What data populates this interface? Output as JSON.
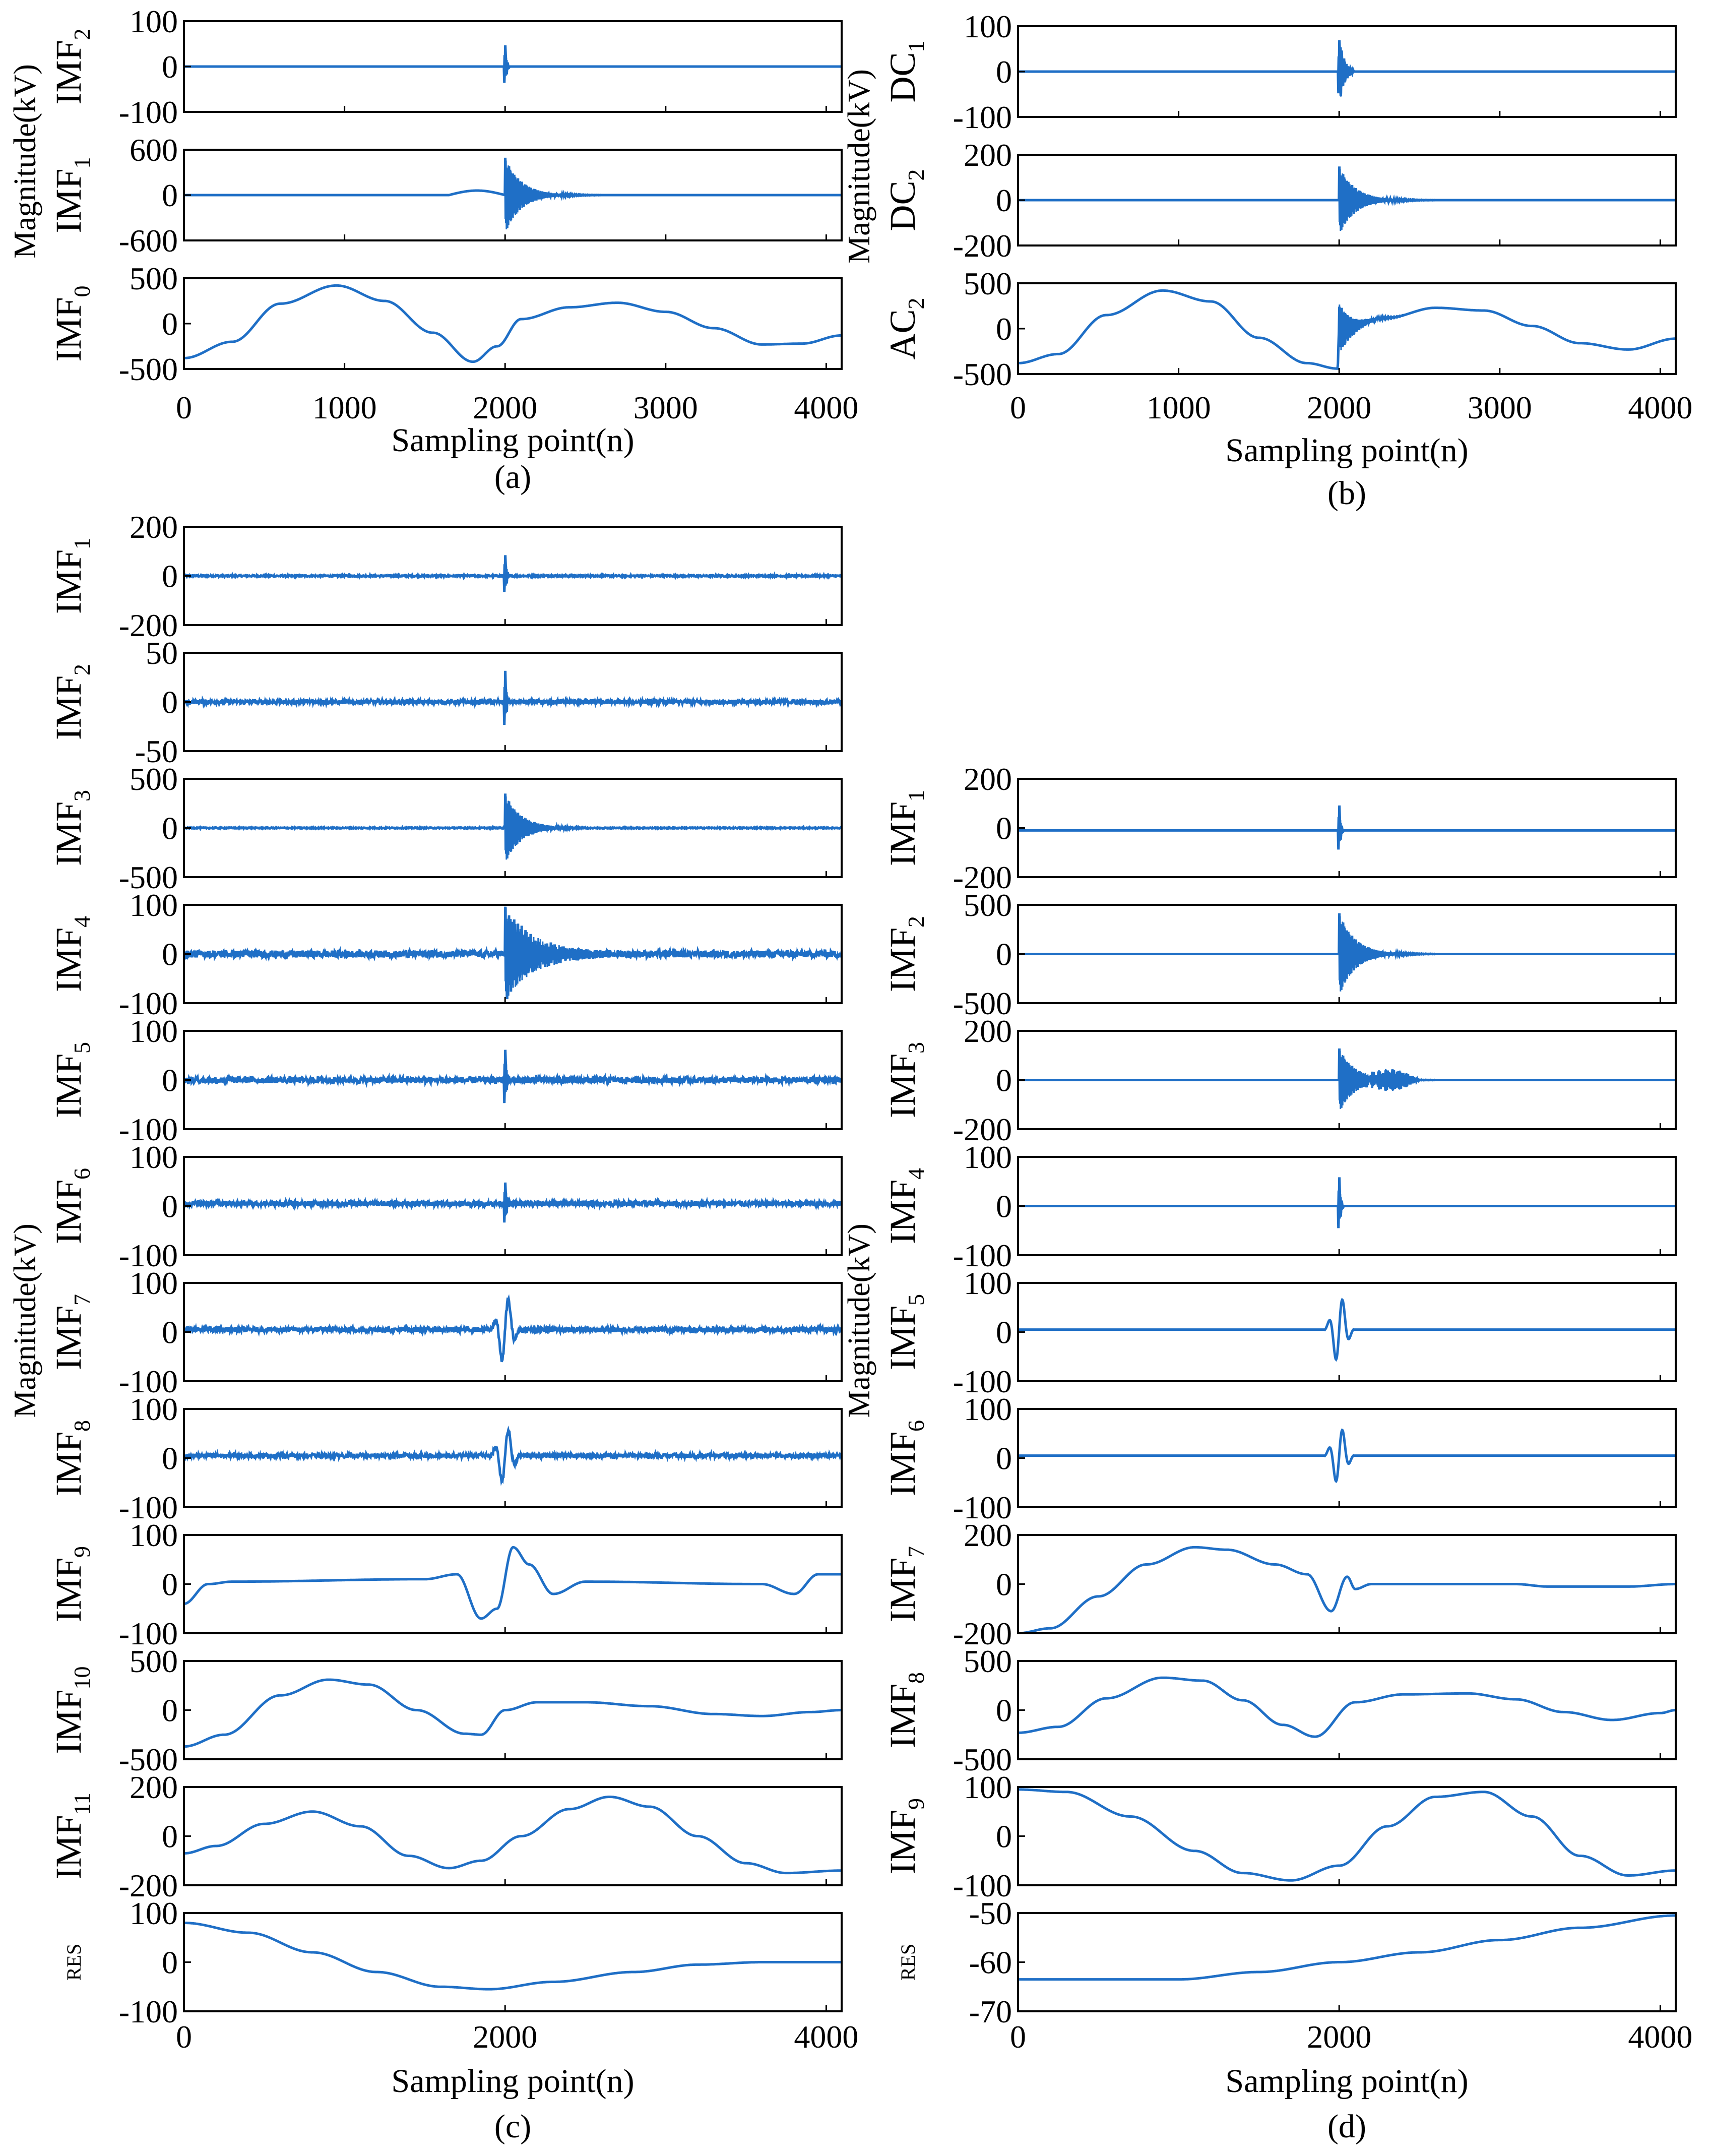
{
  "chart_data": [
    {
      "type": "line",
      "caption": "(a)",
      "group_ylabel": "Magnitude(kV)",
      "xlabel": "Sampling point(n)",
      "xlim": [
        0,
        4096
      ],
      "xticks": [
        "0",
        "1000",
        "2000",
        "3000",
        "4000"
      ],
      "line_color": "#1f6fc6",
      "panels": [
        {
          "label": "IMF",
          "sub": "2",
          "ylim": [
            -100,
            100
          ],
          "yticks": [
            "100",
            "0",
            "-100"
          ],
          "wave": "spike",
          "amp": 60
        },
        {
          "label": "IMF",
          "sub": "1",
          "ylim": [
            -600,
            600
          ],
          "yticks": [
            "600",
            "0",
            "-600"
          ],
          "wave": "burst",
          "amp": 500,
          "bump": 60
        },
        {
          "label": "IMF",
          "sub": "0",
          "ylim": [
            -500,
            500
          ],
          "yticks": [
            "500",
            "0",
            "-500"
          ],
          "wave": "fund",
          "points": [
            [
              0,
              -380
            ],
            [
              300,
              -200
            ],
            [
              600,
              220
            ],
            [
              950,
              420
            ],
            [
              1250,
              250
            ],
            [
              1550,
              -100
            ],
            [
              1800,
              -420
            ],
            [
              1950,
              -250
            ],
            [
              2100,
              50
            ],
            [
              2400,
              180
            ],
            [
              2700,
              230
            ],
            [
              3000,
              130
            ],
            [
              3300,
              -50
            ],
            [
              3600,
              -230
            ],
            [
              3850,
              -220
            ],
            [
              4096,
              -130
            ]
          ]
        }
      ]
    },
    {
      "type": "line",
      "caption": "(b)",
      "group_ylabel": "Magnitude(kV)",
      "xlabel": "Sampling point(n)",
      "xlim": [
        0,
        4096
      ],
      "xticks": [
        "0",
        "1000",
        "2000",
        "3000",
        "4000"
      ],
      "line_color": "#1f6fc6",
      "panels": [
        {
          "label": "DC",
          "sub": "1",
          "ylim": [
            -100,
            100
          ],
          "yticks": [
            "100",
            "0",
            "-100"
          ],
          "wave": "spike",
          "amp": 80,
          "ring": 90
        },
        {
          "label": "DC",
          "sub": "2",
          "ylim": [
            -200,
            200
          ],
          "yticks": [
            "200",
            "0",
            "-200"
          ],
          "wave": "burst",
          "amp": 150
        },
        {
          "label": "AC",
          "sub": "2",
          "ylim": [
            -500,
            500
          ],
          "yticks": [
            "500",
            "0",
            "-500"
          ],
          "wave": "fundburst",
          "amp": 280,
          "points": [
            [
              0,
              -380
            ],
            [
              250,
              -280
            ],
            [
              550,
              150
            ],
            [
              900,
              420
            ],
            [
              1200,
              300
            ],
            [
              1500,
              -100
            ],
            [
              1800,
              -380
            ],
            [
              1990,
              -440
            ],
            [
              2000,
              0
            ],
            [
              2300,
              120
            ],
            [
              2600,
              230
            ],
            [
              2900,
              200
            ],
            [
              3200,
              30
            ],
            [
              3500,
              -160
            ],
            [
              3800,
              -230
            ],
            [
              4096,
              -110
            ]
          ]
        }
      ]
    },
    {
      "type": "line",
      "caption": "(c)",
      "group_ylabel": "Magnitude(kV)",
      "xlabel": "Sampling point(n)",
      "xlim": [
        0,
        4096
      ],
      "xticks": [
        "0",
        "2000",
        "4000"
      ],
      "line_color": "#1f6fc6",
      "panels": [
        {
          "label": "IMF",
          "sub": "1",
          "ylim": [
            -200,
            200
          ],
          "yticks": [
            "200",
            "0",
            "-200"
          ],
          "wave": "spike",
          "amp": 110,
          "noise": 3
        },
        {
          "label": "IMF",
          "sub": "2",
          "ylim": [
            -50,
            50
          ],
          "yticks": [
            "50",
            "0",
            "-50"
          ],
          "wave": "spike",
          "amp": 38,
          "noise": 2
        },
        {
          "label": "IMF",
          "sub": "3",
          "ylim": [
            -500,
            500
          ],
          "yticks": [
            "500",
            "0",
            "-500"
          ],
          "wave": "burst",
          "amp": 350,
          "noise": 5
        },
        {
          "label": "IMF",
          "sub": "4",
          "ylim": [
            -100,
            100
          ],
          "yticks": [
            "100",
            "0",
            "-100"
          ],
          "wave": "burst",
          "amp": 95,
          "noise": 7,
          "ring": 500
        },
        {
          "label": "IMF",
          "sub": "5",
          "ylim": [
            -100,
            100
          ],
          "yticks": [
            "100",
            "0",
            "-100"
          ],
          "wave": "spike",
          "amp": 80,
          "noise": 6
        },
        {
          "label": "IMF",
          "sub": "6",
          "ylim": [
            -100,
            100
          ],
          "yticks": [
            "100",
            "0",
            "-100"
          ],
          "wave": "spike",
          "amp": 60,
          "noise": 5,
          "offset": 5
        },
        {
          "label": "IMF",
          "sub": "7",
          "ylim": [
            -100,
            100
          ],
          "yticks": [
            "100",
            "0",
            "-100"
          ],
          "wave": "wavelet",
          "amp": 70,
          "noise": 5,
          "offset": 5
        },
        {
          "label": "IMF",
          "sub": "8",
          "ylim": [
            -100,
            100
          ],
          "yticks": [
            "100",
            "0",
            "-100"
          ],
          "wave": "wavelet",
          "amp": 60,
          "noise": 4,
          "offset": 5
        },
        {
          "label": "IMF",
          "sub": "9",
          "ylim": [
            -100,
            100
          ],
          "yticks": [
            "100",
            "0",
            "-100"
          ],
          "wave": "points",
          "points": [
            [
              0,
              -40
            ],
            [
              150,
              0
            ],
            [
              300,
              5
            ],
            [
              1500,
              10
            ],
            [
              1700,
              20
            ],
            [
              1850,
              -70
            ],
            [
              1950,
              -50
            ],
            [
              2050,
              75
            ],
            [
              2150,
              40
            ],
            [
              2300,
              -20
            ],
            [
              2500,
              5
            ],
            [
              3600,
              0
            ],
            [
              3800,
              -20
            ],
            [
              3950,
              20
            ],
            [
              4096,
              20
            ]
          ]
        },
        {
          "label": "IMF",
          "sub": "10",
          "ylim": [
            -500,
            500
          ],
          "yticks": [
            "500",
            "0",
            "-500"
          ],
          "wave": "points",
          "points": [
            [
              0,
              -370
            ],
            [
              250,
              -250
            ],
            [
              600,
              150
            ],
            [
              900,
              310
            ],
            [
              1150,
              260
            ],
            [
              1450,
              0
            ],
            [
              1750,
              -240
            ],
            [
              1850,
              -250
            ],
            [
              2000,
              0
            ],
            [
              2200,
              80
            ],
            [
              2500,
              80
            ],
            [
              2900,
              40
            ],
            [
              3300,
              -40
            ],
            [
              3600,
              -60
            ],
            [
              3900,
              -20
            ],
            [
              4096,
              0
            ]
          ]
        },
        {
          "label": "IMF",
          "sub": "11",
          "ylim": [
            -200,
            200
          ],
          "yticks": [
            "200",
            "0",
            "-200"
          ],
          "wave": "points",
          "points": [
            [
              0,
              -70
            ],
            [
              200,
              -40
            ],
            [
              500,
              50
            ],
            [
              800,
              100
            ],
            [
              1100,
              40
            ],
            [
              1400,
              -80
            ],
            [
              1650,
              -130
            ],
            [
              1850,
              -100
            ],
            [
              2100,
              0
            ],
            [
              2400,
              110
            ],
            [
              2650,
              160
            ],
            [
              2900,
              120
            ],
            [
              3200,
              0
            ],
            [
              3500,
              -110
            ],
            [
              3750,
              -150
            ],
            [
              4096,
              -140
            ]
          ]
        },
        {
          "label": "RES",
          "sub": "",
          "ylim": [
            -100,
            100
          ],
          "yticks": [
            "100",
            "0",
            "-100"
          ],
          "wave": "points",
          "points": [
            [
              0,
              80
            ],
            [
              400,
              60
            ],
            [
              800,
              20
            ],
            [
              1200,
              -20
            ],
            [
              1600,
              -50
            ],
            [
              1900,
              -55
            ],
            [
              2300,
              -40
            ],
            [
              2800,
              -20
            ],
            [
              3200,
              -5
            ],
            [
              3600,
              0
            ],
            [
              4096,
              0
            ]
          ]
        }
      ]
    },
    {
      "type": "line",
      "caption": "(d)",
      "group_ylabel": "Magnitude(kV)",
      "xlabel": "Sampling point(n)",
      "xlim": [
        0,
        4096
      ],
      "xticks": [
        "0",
        "2000",
        "4000"
      ],
      "line_color": "#1f6fc6",
      "panels": [
        {
          "label": "IMF",
          "sub": "1",
          "ylim": [
            -200,
            200
          ],
          "yticks": [
            "200",
            "0",
            "-200"
          ],
          "wave": "spike",
          "amp": 130,
          "offset": -10
        },
        {
          "label": "IMF",
          "sub": "2",
          "ylim": [
            -500,
            500
          ],
          "yticks": [
            "500",
            "0",
            "-500"
          ],
          "wave": "burst",
          "amp": 420
        },
        {
          "label": "IMF",
          "sub": "3",
          "ylim": [
            -200,
            200
          ],
          "yticks": [
            "200",
            "0",
            "-200"
          ],
          "wave": "burst",
          "amp": 130,
          "tail": 40
        },
        {
          "label": "IMF",
          "sub": "4",
          "ylim": [
            -100,
            100
          ],
          "yticks": [
            "100",
            "0",
            "-100"
          ],
          "wave": "spike",
          "amp": 75
        },
        {
          "label": "IMF",
          "sub": "5",
          "ylim": [
            -100,
            100
          ],
          "yticks": [
            "100",
            "0",
            "-100"
          ],
          "wave": "wavelet",
          "amp": 70,
          "offset": 5
        },
        {
          "label": "IMF",
          "sub": "6",
          "ylim": [
            -100,
            100
          ],
          "yticks": [
            "100",
            "0",
            "-100"
          ],
          "wave": "wavelet",
          "amp": 60,
          "offset": 5
        },
        {
          "label": "IMF",
          "sub": "7",
          "ylim": [
            -200,
            200
          ],
          "yticks": [
            "200",
            "0",
            "-200"
          ],
          "wave": "points",
          "points": [
            [
              0,
              -200
            ],
            [
              200,
              -180
            ],
            [
              500,
              -50
            ],
            [
              800,
              80
            ],
            [
              1100,
              150
            ],
            [
              1300,
              140
            ],
            [
              1600,
              80
            ],
            [
              1800,
              40
            ],
            [
              1950,
              -110
            ],
            [
              2050,
              30
            ],
            [
              2100,
              -20
            ],
            [
              2200,
              0
            ],
            [
              3100,
              0
            ],
            [
              3300,
              -10
            ],
            [
              3800,
              -10
            ],
            [
              4096,
              0
            ]
          ]
        },
        {
          "label": "IMF",
          "sub": "8",
          "ylim": [
            -500,
            500
          ],
          "yticks": [
            "500",
            "0",
            "-500"
          ],
          "wave": "points",
          "points": [
            [
              0,
              -230
            ],
            [
              250,
              -170
            ],
            [
              550,
              120
            ],
            [
              900,
              330
            ],
            [
              1150,
              300
            ],
            [
              1400,
              100
            ],
            [
              1650,
              -150
            ],
            [
              1850,
              -270
            ],
            [
              2100,
              80
            ],
            [
              2400,
              160
            ],
            [
              2800,
              170
            ],
            [
              3100,
              110
            ],
            [
              3400,
              -20
            ],
            [
              3700,
              -100
            ],
            [
              4000,
              -30
            ],
            [
              4096,
              0
            ]
          ]
        },
        {
          "label": "IMF",
          "sub": "9",
          "ylim": [
            -100,
            100
          ],
          "yticks": [
            "100",
            "0",
            "-100"
          ],
          "wave": "points",
          "points": [
            [
              0,
              95
            ],
            [
              300,
              90
            ],
            [
              700,
              40
            ],
            [
              1100,
              -30
            ],
            [
              1400,
              -75
            ],
            [
              1700,
              -90
            ],
            [
              2000,
              -60
            ],
            [
              2300,
              20
            ],
            [
              2600,
              80
            ],
            [
              2900,
              90
            ],
            [
              3200,
              40
            ],
            [
              3500,
              -40
            ],
            [
              3800,
              -80
            ],
            [
              4096,
              -70
            ]
          ]
        },
        {
          "label": "RES",
          "sub": "",
          "ylim": [
            -70,
            -50
          ],
          "yticks": [
            "-50",
            "-60",
            "-70"
          ],
          "wave": "points",
          "points": [
            [
              0,
              -63.5
            ],
            [
              1000,
              -63.5
            ],
            [
              1500,
              -62
            ],
            [
              2000,
              -60
            ],
            [
              2500,
              -58
            ],
            [
              3000,
              -55.5
            ],
            [
              3500,
              -53
            ],
            [
              4096,
              -50.5
            ]
          ]
        }
      ]
    }
  ]
}
